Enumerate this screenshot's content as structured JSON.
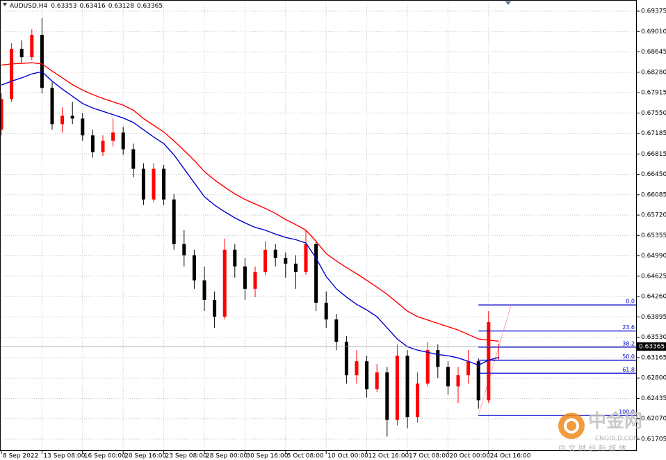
{
  "chart_data": {
    "type": "candlestick",
    "title": "AUDUSD,H4",
    "categories": [
      "8 Sep 2022",
      null,
      null,
      null,
      "13 Sep 08:00",
      null,
      null,
      null,
      "16 Sep 00:00",
      null,
      null,
      null,
      "20 Sep 16:00",
      null,
      null,
      null,
      "23 Sep 08:00",
      null,
      null,
      null,
      "28 Sep 00:00",
      null,
      null,
      null,
      "30 Sep 16:00",
      null,
      null,
      null,
      "5 Oct 08:00",
      null,
      null,
      null,
      "10 Oct 00:00",
      null,
      null,
      null,
      "12 Oct 16:00",
      null,
      null,
      null,
      "17 Oct 08:00",
      null,
      null,
      null,
      "20 Oct 00:00",
      null,
      null,
      null,
      "24 Oct 16:00",
      null
    ],
    "open": [
      0.6725,
      0.678,
      0.687,
      0.6855,
      0.6895,
      0.68,
      0.6735,
      0.675,
      0.6745,
      0.6715,
      0.6685,
      0.6705,
      0.672,
      0.669,
      0.6655,
      0.66,
      0.6655,
      0.66,
      0.652,
      0.65,
      0.6455,
      0.642,
      0.639,
      0.651,
      0.648,
      0.644,
      0.647,
      0.651,
      0.6495,
      0.6485,
      0.647,
      0.652,
      0.6415,
      0.6385,
      0.6345,
      0.6285,
      0.631,
      0.626,
      0.629,
      0.6205,
      0.632,
      0.621,
      0.627,
      0.633,
      0.63,
      0.6265,
      0.6285,
      0.631,
      0.624,
      0.63353
    ],
    "high": [
      0.679,
      0.688,
      0.6885,
      0.6905,
      0.6925,
      0.681,
      0.6765,
      0.6775,
      0.6755,
      0.6725,
      0.6715,
      0.6745,
      0.673,
      0.67,
      0.6665,
      0.6665,
      0.6662,
      0.661,
      0.6545,
      0.651,
      0.648,
      0.6435,
      0.653,
      0.652,
      0.6495,
      0.648,
      0.6525,
      0.652,
      0.6505,
      0.65,
      0.6545,
      0.6525,
      0.6435,
      0.6395,
      0.6355,
      0.633,
      0.632,
      0.6305,
      0.63,
      0.634,
      0.633,
      0.629,
      0.6345,
      0.634,
      0.631,
      0.63,
      0.633,
      0.6315,
      0.64,
      0.63416
    ],
    "low": [
      0.6715,
      0.6775,
      0.6845,
      0.685,
      0.679,
      0.6725,
      0.672,
      0.6735,
      0.6705,
      0.6675,
      0.6678,
      0.6695,
      0.668,
      0.664,
      0.659,
      0.6595,
      0.659,
      0.651,
      0.648,
      0.644,
      0.64,
      0.637,
      0.6385,
      0.646,
      0.642,
      0.6425,
      0.6465,
      0.648,
      0.646,
      0.644,
      0.6465,
      0.64,
      0.637,
      0.633,
      0.627,
      0.627,
      0.6245,
      0.6255,
      0.6175,
      0.6195,
      0.619,
      0.62,
      0.6265,
      0.628,
      0.625,
      0.6235,
      0.627,
      0.6225,
      0.6235,
      0.63128
    ],
    "close": [
      0.678,
      0.687,
      0.6855,
      0.6895,
      0.68,
      0.6735,
      0.675,
      0.6745,
      0.6715,
      0.6685,
      0.6705,
      0.672,
      0.669,
      0.6655,
      0.66,
      0.6655,
      0.66,
      0.652,
      0.65,
      0.6455,
      0.642,
      0.639,
      0.651,
      0.648,
      0.644,
      0.647,
      0.651,
      0.6495,
      0.6485,
      0.647,
      0.652,
      0.6415,
      0.6385,
      0.6345,
      0.6285,
      0.631,
      0.626,
      0.629,
      0.6205,
      0.632,
      0.621,
      0.627,
      0.633,
      0.63,
      0.6265,
      0.6285,
      0.631,
      0.624,
      0.638,
      0.63365
    ],
    "up_color": "#ff0000",
    "down_color": "#000000",
    "lines": [
      {
        "color": "#ff0000",
        "values": [
          0.6841,
          0.6843,
          0.6844,
          0.6845,
          0.6843,
          0.683,
          0.6818,
          0.6806,
          0.6796,
          0.6788,
          0.6781,
          0.6775,
          0.6769,
          0.676,
          0.6745,
          0.6733,
          0.6721,
          0.6705,
          0.6688,
          0.667,
          0.665,
          0.6635,
          0.6622,
          0.661,
          0.66,
          0.6592,
          0.6584,
          0.6575,
          0.6564,
          0.6555,
          0.6545,
          0.6525,
          0.6503,
          0.649,
          0.6478,
          0.6467,
          0.6455,
          0.6443,
          0.643,
          0.6415,
          0.64,
          0.639,
          0.6384,
          0.6378,
          0.6372,
          0.6366,
          0.6358,
          0.635,
          0.6348,
          0.6346
        ]
      },
      {
        "color": "#0000cc",
        "values": [
          0.6805,
          0.6812,
          0.6818,
          0.6825,
          0.6829,
          0.6812,
          0.6798,
          0.6785,
          0.6772,
          0.6764,
          0.6758,
          0.6752,
          0.6746,
          0.6738,
          0.6725,
          0.6712,
          0.67,
          0.668,
          0.6655,
          0.663,
          0.6605,
          0.659,
          0.6578,
          0.6567,
          0.6558,
          0.655,
          0.6545,
          0.6538,
          0.6532,
          0.6528,
          0.6522,
          0.6495,
          0.6462,
          0.644,
          0.6425,
          0.6412,
          0.6402,
          0.639,
          0.637,
          0.635,
          0.6336,
          0.633,
          0.6326,
          0.6322,
          0.632,
          0.6316,
          0.631,
          0.6303,
          0.6312,
          0.6317
        ]
      }
    ],
    "fibonacci": {
      "color": "#0000cc",
      "high": 0.6411,
      "low": 0.6213,
      "levels": [
        {
          "value": 0,
          "label": "0.0"
        },
        23.6,
        38.2,
        {
          "value": 50,
          "label": "50.0"
        },
        61.8,
        {
          "value": 100,
          "label": "100.0"
        }
      ]
    },
    "ylim": [
      0.61493,
      0.69575
    ],
    "yticks": [
      0.69375,
      {
        "value": 0.6901,
        "label": "0.69010"
      },
      0.68645,
      {
        "value": 0.6828,
        "label": "0.68280"
      },
      0.67915,
      {
        "value": 0.6755,
        "label": "0.67550"
      },
      0.67185,
      0.66815,
      {
        "value": 0.6645,
        "label": "0.66450"
      },
      0.66085,
      {
        "value": 0.6572,
        "label": "0.65720"
      },
      0.65355,
      {
        "value": 0.6499,
        "label": "0.64990"
      },
      0.64625,
      {
        "value": 0.6426,
        "label": "0.64260"
      },
      0.63895,
      {
        "value": 0.6353,
        "label": "0.63530"
      },
      0.63165,
      {
        "value": 0.628,
        "label": "0.62800"
      },
      0.62435,
      {
        "value": 0.6207,
        "label": "0.62070"
      },
      0.61705
    ],
    "grid": true,
    "watermark": {
      "logo": "中金网",
      "site": "CNGOLD.COM",
      "slogan": "中 文 财 经 新 媒 体"
    }
  }
}
